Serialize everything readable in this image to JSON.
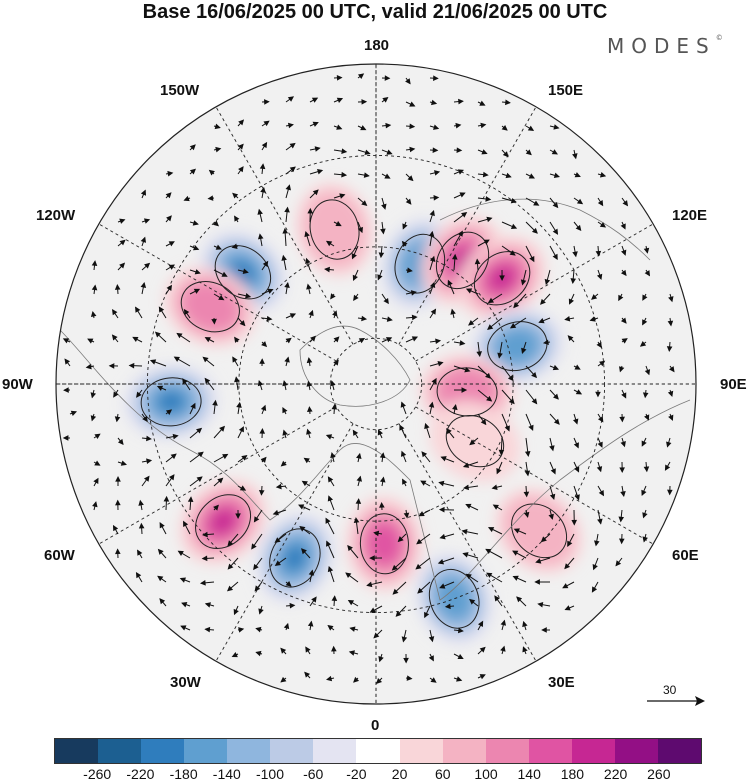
{
  "title": "Base 16/06/2025 00 UTC, valid 21/06/2025 00 UTC",
  "brand": "MODES",
  "brand_mark": "©",
  "longitude_labels": {
    "n180": "180",
    "w150": "150W",
    "e150": "150E",
    "w120": "120W",
    "e120": "120E",
    "w90": "90W",
    "e90": "90E",
    "w60": "60W",
    "e60": "60E",
    "w30": "30W",
    "e30": "30E",
    "s0": "0"
  },
  "reference_vector": {
    "label": "30"
  },
  "colorbar": {
    "colors": [
      "#173a5e",
      "#1c5f91",
      "#2f7dbd",
      "#5f9fd0",
      "#8fb6de",
      "#bccbe6",
      "#e4e4f2",
      "#ffffff",
      "#f9d6d9",
      "#f4b3c3",
      "#ec86b0",
      "#e054a3",
      "#c62793",
      "#930f85",
      "#5e0a6f"
    ],
    "ticks": [
      "-260",
      "-220",
      "-180",
      "-140",
      "-100",
      "-60",
      "-20",
      "20",
      "60",
      "100",
      "140",
      "180",
      "220",
      "260"
    ]
  },
  "anomaly_centers": [
    {
      "lat": 62,
      "lon": 160,
      "value": -140
    },
    {
      "lat": 57,
      "lon": 145,
      "value": 220
    },
    {
      "lat": 55,
      "lon": -165,
      "value": 60
    },
    {
      "lat": 54,
      "lon": 130,
      "value": 260
    },
    {
      "lat": 52,
      "lon": -130,
      "value": -180
    },
    {
      "lat": 58,
      "lon": 105,
      "value": -140
    },
    {
      "lat": 50,
      "lon": -115,
      "value": 100
    },
    {
      "lat": 70,
      "lon": 85,
      "value": 100
    },
    {
      "lat": 45,
      "lon": -85,
      "value": -180
    },
    {
      "lat": 45,
      "lon": -48,
      "value": 180
    },
    {
      "lat": 48,
      "lon": -25,
      "value": -180
    },
    {
      "lat": 55,
      "lon": 3,
      "value": 140
    },
    {
      "lat": 40,
      "lon": 20,
      "value": -140
    },
    {
      "lat": 42,
      "lon": 48,
      "value": 60
    },
    {
      "lat": 65,
      "lon": 60,
      "value": 20
    }
  ]
}
